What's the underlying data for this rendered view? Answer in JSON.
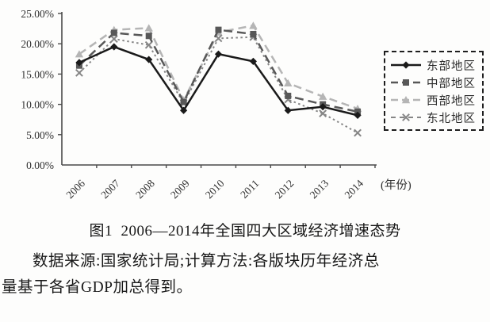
{
  "figure": {
    "caption": "图1  2006—2014年全国四大区域经济增速态势",
    "source_line1": "数据来源:国家统计局;计算方法:各版块历年经济总",
    "source_line2": "量基于各省GDP加总得到。"
  },
  "chart_data": {
    "type": "line",
    "title": "",
    "xlabel": "(年份)",
    "ylabel": "",
    "categories": [
      "2006",
      "2007",
      "2008",
      "2009",
      "2010",
      "2011",
      "2012",
      "2013",
      "2014"
    ],
    "y_ticks": [
      "0.00%",
      "5.00%",
      "10.00%",
      "15.00%",
      "20.00%",
      "25.00%"
    ],
    "ylim": [
      0,
      25
    ],
    "grid": false,
    "legend_position": "right",
    "series": [
      {
        "name": "东部地区",
        "marker": "diamond",
        "line": "solid",
        "color": "#1a1a1a",
        "values": [
          16.9,
          19.5,
          17.4,
          9.0,
          18.3,
          17.1,
          9.0,
          9.6,
          8.2
        ]
      },
      {
        "name": "中部地区",
        "marker": "square",
        "line": "long-dash",
        "color": "#585858",
        "values": [
          16.4,
          21.8,
          21.3,
          10.4,
          22.3,
          21.6,
          11.4,
          10.0,
          8.8
        ]
      },
      {
        "name": "西部地区",
        "marker": "triangle",
        "line": "dash",
        "color": "#b5b5b5",
        "values": [
          18.3,
          22.3,
          22.6,
          10.7,
          21.9,
          23.0,
          13.5,
          11.3,
          9.3
        ]
      },
      {
        "name": "东北地区",
        "marker": "x-cross",
        "line": "dot",
        "color": "#868686",
        "values": [
          15.2,
          20.8,
          19.8,
          10.2,
          20.9,
          21.1,
          10.8,
          8.5,
          5.3
        ]
      }
    ]
  }
}
